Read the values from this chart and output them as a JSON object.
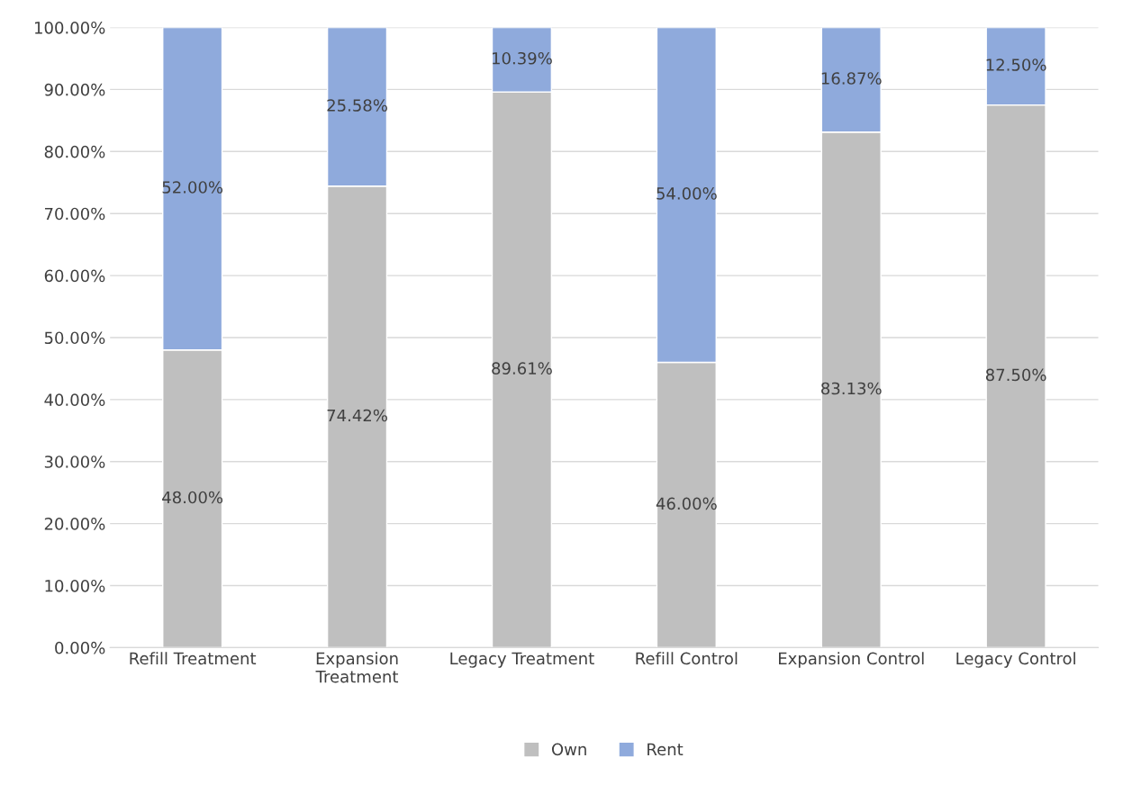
{
  "chart_data": {
    "type": "bar",
    "stacked": true,
    "categories": [
      "Refill Treatment",
      "Expansion\nTreatment",
      "Legacy Treatment",
      "Refill Control",
      "Expansion Control",
      "Legacy Control"
    ],
    "series": [
      {
        "name": "Own",
        "color": "#bfbfbf",
        "values": [
          48.0,
          74.42,
          89.61,
          46.0,
          83.13,
          87.5
        ],
        "value_labels": [
          "48.00%",
          "74.42%",
          "89.61%",
          "46.00%",
          "83.13%",
          "87.50%"
        ]
      },
      {
        "name": "Rent",
        "color": "#8faadc",
        "values": [
          52.0,
          25.58,
          10.39,
          54.0,
          16.87,
          12.5
        ],
        "value_labels": [
          "52.00%",
          "25.58%",
          "10.39%",
          "54.00%",
          "16.87%",
          "12.50%"
        ]
      }
    ],
    "ylim": [
      0,
      100
    ],
    "yticks": [
      {
        "value": 0,
        "label": "0.00%"
      },
      {
        "value": 10,
        "label": "10.00%"
      },
      {
        "value": 20,
        "label": "20.00%"
      },
      {
        "value": 30,
        "label": "30.00%"
      },
      {
        "value": 40,
        "label": "40.00%"
      },
      {
        "value": 50,
        "label": "50.00%"
      },
      {
        "value": 60,
        "label": "60.00%"
      },
      {
        "value": 70,
        "label": "70.00%"
      },
      {
        "value": 80,
        "label": "80.00%"
      },
      {
        "value": 90,
        "label": "90.00%"
      },
      {
        "value": 100,
        "label": "100.00%"
      }
    ],
    "grid": "y",
    "legend": "bottom"
  }
}
